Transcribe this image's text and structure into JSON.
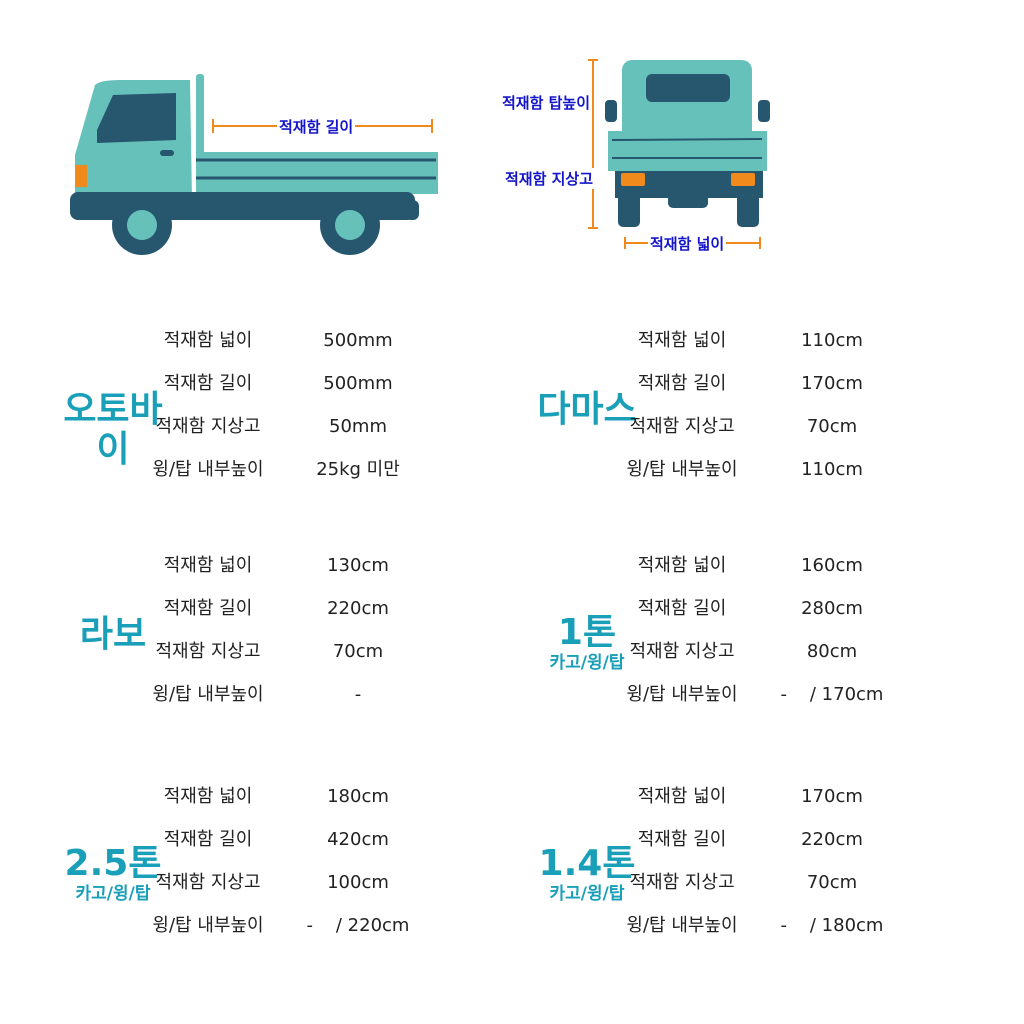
{
  "diagram": {
    "side_label": "적재함 길이",
    "top_height_label": "적재함 탑높이",
    "ground_label": "적재함 지상고",
    "width_label": "적재함 넓이",
    "colors": {
      "body": "#67c1bb",
      "dark": "#27566f",
      "light": "#f08a1c",
      "dimension": "#f08a1c",
      "label": "#1414c8"
    }
  },
  "accent_color": "#1a9fb8",
  "sections": [
    {
      "title": "오토바이",
      "subtitle": "",
      "rows": [
        {
          "label": "적재함 넓이",
          "value": "500mm"
        },
        {
          "label": "적재함 길이",
          "value": "500mm"
        },
        {
          "label": "적재함 지상고",
          "value": "50mm"
        },
        {
          "label": "윙/탑 내부높이",
          "value": "25kg 미만"
        }
      ]
    },
    {
      "title": "다마스",
      "subtitle": "",
      "rows": [
        {
          "label": "적재함 넓이",
          "value": "110cm"
        },
        {
          "label": "적재함 길이",
          "value": "170cm"
        },
        {
          "label": "적재함 지상고",
          "value": "70cm"
        },
        {
          "label": "윙/탑 내부높이",
          "value": "110cm"
        }
      ]
    },
    {
      "title": "라보",
      "subtitle": "",
      "rows": [
        {
          "label": "적재함 넓이",
          "value": "130cm"
        },
        {
          "label": "적재함 길이",
          "value": "220cm"
        },
        {
          "label": "적재함 지상고",
          "value": "70cm"
        },
        {
          "label": "윙/탑 내부높이",
          "value": "-"
        }
      ]
    },
    {
      "title": "1톤",
      "subtitle": "카고/윙/탑",
      "rows": [
        {
          "label": "적재함 넓이",
          "value": "160cm"
        },
        {
          "label": "적재함 길이",
          "value": "280cm"
        },
        {
          "label": "적재함 지상고",
          "value": "80cm"
        },
        {
          "label": "윙/탑 내부높이",
          "value": "-    / 170cm"
        }
      ]
    },
    {
      "title": "2.5톤",
      "subtitle": "카고/윙/탑",
      "rows": [
        {
          "label": "적재함 넓이",
          "value": "180cm"
        },
        {
          "label": "적재함 길이",
          "value": "420cm"
        },
        {
          "label": "적재함 지상고",
          "value": "100cm"
        },
        {
          "label": "윙/탑 내부높이",
          "value": "-    / 220cm"
        }
      ]
    },
    {
      "title": "1.4톤",
      "subtitle": "카고/윙/탑",
      "rows": [
        {
          "label": "적재함 넓이",
          "value": "170cm"
        },
        {
          "label": "적재함 길이",
          "value": "220cm"
        },
        {
          "label": "적재함 지상고",
          "value": "70cm"
        },
        {
          "label": "윙/탑 내부높이",
          "value": "-    / 180cm"
        }
      ]
    }
  ]
}
